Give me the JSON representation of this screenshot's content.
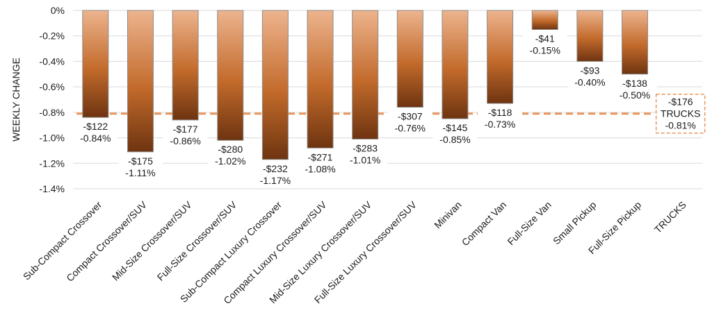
{
  "chart_data": {
    "type": "bar",
    "ylabel": "WEEKLY CHANGE",
    "ylim": [
      -1.4,
      0
    ],
    "yticks": [
      0,
      -0.2,
      -0.4,
      -0.6,
      -0.8,
      -1.0,
      -1.2,
      -1.4
    ],
    "ytick_labels": [
      "0%",
      "-0.2%",
      "-0.4%",
      "-0.6%",
      "-0.8%",
      "-1.0%",
      "-1.2%",
      "-1.4%"
    ],
    "grid": true,
    "categories": [
      "Sub-Compact Crossover",
      "Compact Crossover/SUV",
      "Mid-Size Crossover/SUV",
      "Full-Size Crossover/SUV",
      "Sub-Compact Luxury Crossover",
      "Compact Luxury Crossover/SUV",
      "Mid-Size Luxury Crossover/SUV",
      "Full-Size Luxury Crossover/SUV",
      "Minivan",
      "Compact Van",
      "Full-Size Van",
      "Small Pickup",
      "Full-Size Pickup",
      "TRUCKS"
    ],
    "values": [
      -0.84,
      -1.11,
      -0.86,
      -1.02,
      -1.17,
      -1.08,
      -1.01,
      -0.76,
      -0.85,
      -0.73,
      -0.15,
      -0.4,
      -0.5,
      null
    ],
    "dollar_labels": [
      "-$122",
      "-$175",
      "-$177",
      "-$280",
      "-$232",
      "-$271",
      "-$283",
      "-$307",
      "-$145",
      "-$118",
      "-$41",
      "-$93",
      "-$138"
    ],
    "percent_labels": [
      "-0.84%",
      "-1.11%",
      "-0.86%",
      "-1.02%",
      "-1.17%",
      "-1.08%",
      "-1.01%",
      "-0.76%",
      "-0.85%",
      "-0.73%",
      "-0.15%",
      "-0.40%",
      "-0.50%"
    ],
    "reference_line": {
      "value": -0.81,
      "labels": [
        "-$176",
        "TRUCKS",
        "-0.81%"
      ]
    },
    "colors": {
      "bar_top": "#EDB48E",
      "bar_mid": "#C26A2B",
      "bar_bottom": "#6E3410",
      "bar_stroke": "#8C8C8C",
      "reference": "#E8945A",
      "grid": "#D9D9D9"
    }
  }
}
